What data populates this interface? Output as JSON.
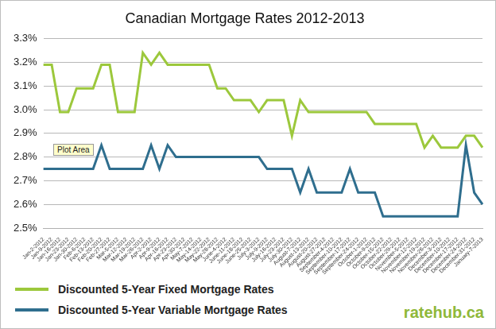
{
  "chart_data": {
    "type": "line",
    "title": "Canadian Mortgage Rates 2012-2013",
    "categories": [
      "Jan-2-2012",
      "Jan-9-2012",
      "Jan-16-2012",
      "Jan-23-2012",
      "Jan-30-2012",
      "Feb-6-2012",
      "Feb-13-2012",
      "Feb-20-2012",
      "Feb-27-2012",
      "Mar-5-2012",
      "Mar-12-2012",
      "Mar-19-2012",
      "Mar-26-2012",
      "Apr-2-2012",
      "Apr-9-2012",
      "Apr-16-2012",
      "Apr-23-2012",
      "Apr-30-2012",
      "May-7-2012",
      "May-14-2012",
      "May-22-2012",
      "May-28-2012",
      "June-4-2012",
      "June-11-2012",
      "June-18-2012",
      "June-25-2012",
      "July-3-2012",
      "July-9-2012",
      "July-16-2012",
      "July-23-2012",
      "July-30-2012",
      "August-7-2012",
      "August-13-2012",
      "August-20-2012",
      "August-27-2012",
      "September-4-2012",
      "September-10-2012",
      "September-17-2012",
      "September-24-2012",
      "October-1-2012",
      "October-9-2012",
      "October-15-2012",
      "October-22-2012",
      "October-29-2012",
      "November-5-2012",
      "November-12-2012",
      "November-19-2012",
      "November-26-2012",
      "December-3-2012",
      "December-10-2012",
      "December-17-2012",
      "December-24-2012",
      "December-31-2012",
      "January-7-2013"
    ],
    "series": [
      {
        "name": "Discounted 5-Year Fixed Mortgage Rates",
        "color": "#9cc83c",
        "values": [
          3.19,
          3.19,
          2.99,
          2.99,
          3.09,
          3.09,
          3.09,
          3.19,
          3.19,
          2.99,
          2.99,
          2.99,
          3.24,
          3.19,
          3.24,
          3.19,
          3.19,
          3.19,
          3.19,
          3.19,
          3.19,
          3.09,
          3.09,
          3.04,
          3.04,
          3.04,
          2.99,
          3.04,
          3.04,
          3.04,
          2.89,
          3.04,
          2.99,
          2.99,
          2.99,
          2.99,
          2.99,
          2.99,
          2.99,
          2.99,
          2.94,
          2.94,
          2.94,
          2.94,
          2.94,
          2.94,
          2.84,
          2.89,
          2.84,
          2.84,
          2.84,
          2.89,
          2.89,
          2.84
        ]
      },
      {
        "name": "Discounted 5-Year Variable Mortgage Rates",
        "color": "#2f6e8e",
        "values": [
          2.75,
          2.75,
          2.75,
          2.75,
          2.75,
          2.75,
          2.75,
          2.85,
          2.75,
          2.75,
          2.75,
          2.75,
          2.75,
          2.85,
          2.75,
          2.85,
          2.8,
          2.8,
          2.8,
          2.8,
          2.8,
          2.8,
          2.8,
          2.8,
          2.8,
          2.8,
          2.8,
          2.75,
          2.75,
          2.75,
          2.75,
          2.65,
          2.75,
          2.65,
          2.65,
          2.65,
          2.65,
          2.75,
          2.65,
          2.65,
          2.65,
          2.55,
          2.55,
          2.55,
          2.55,
          2.55,
          2.55,
          2.55,
          2.55,
          2.55,
          2.55,
          2.85,
          2.65,
          2.6
        ]
      }
    ],
    "ylim": [
      2.5,
      3.3
    ],
    "yticks": [
      {
        "value": 2.5,
        "label": "2.5%"
      },
      {
        "value": 2.6,
        "label": "2.6%"
      },
      {
        "value": 2.7,
        "label": "2.7%"
      },
      {
        "value": 2.8,
        "label": "2.8%"
      },
      {
        "value": 2.9,
        "label": "2.9%"
      },
      {
        "value": 3.0,
        "label": "3.0%"
      },
      {
        "value": 3.1,
        "label": "3.1%"
      },
      {
        "value": 3.2,
        "label": "3.2%"
      },
      {
        "value": 3.3,
        "label": "3.3%"
      }
    ],
    "grid": true,
    "legend": "bottom",
    "annotations": [
      "Plot Area",
      "ratehub.ca"
    ]
  }
}
